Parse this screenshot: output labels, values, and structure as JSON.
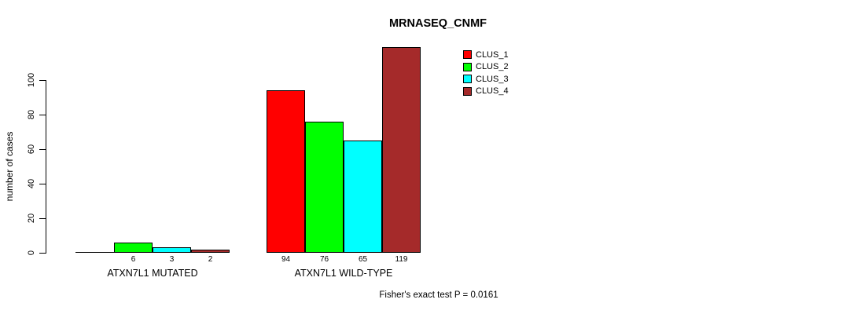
{
  "chart_data": {
    "type": "bar",
    "title": "MRNASEQ_CNMF",
    "ylabel": "number of cases",
    "xlabel": "",
    "ylim": [
      0,
      100
    ],
    "yticks": [
      0,
      20,
      40,
      60,
      80,
      100
    ],
    "categories": [
      "ATXN7L1 MUTATED",
      "ATXN7L1 WILD-TYPE"
    ],
    "series": [
      {
        "name": "CLUS_1",
        "color": "#ff0000",
        "values": [
          0,
          94
        ]
      },
      {
        "name": "CLUS_2",
        "color": "#00ff00",
        "values": [
          6,
          76
        ]
      },
      {
        "name": "CLUS_3",
        "color": "#00ffff",
        "values": [
          3,
          65
        ]
      },
      {
        "name": "CLUS_4",
        "color": "#a52a2a",
        "values": [
          2,
          119
        ]
      }
    ],
    "bar_value_labels": [
      [
        "",
        "6",
        "3",
        "2"
      ],
      [
        "94",
        "76",
        "65",
        "119"
      ]
    ],
    "legend_position": "top-right",
    "grid": false,
    "annotation": "Fisher's exact test P = 0.0161"
  }
}
